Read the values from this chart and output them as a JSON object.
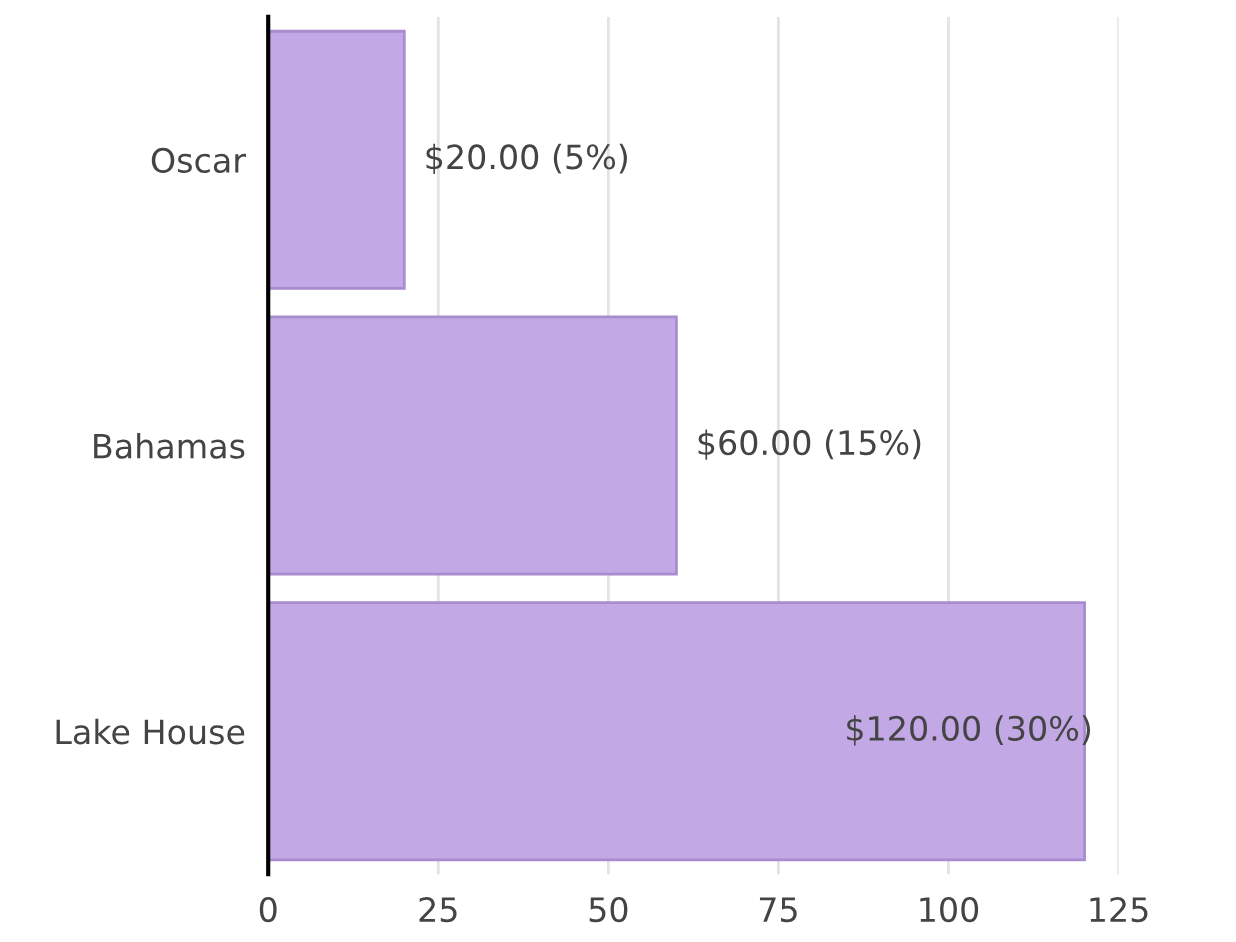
{
  "chart_data": {
    "type": "bar",
    "orientation": "horizontal",
    "categories": [
      "Oscar",
      "Bahamas",
      "Lake House"
    ],
    "values": [
      20,
      60,
      120
    ],
    "value_labels": [
      "$20.00 (5%)",
      "$60.00 (15%)",
      "$120.00 (30%)"
    ],
    "color": "#c3a8e6",
    "xlim": [
      0,
      125
    ],
    "xticks": [
      0,
      25,
      50,
      75,
      100,
      125
    ],
    "grid": "x"
  }
}
